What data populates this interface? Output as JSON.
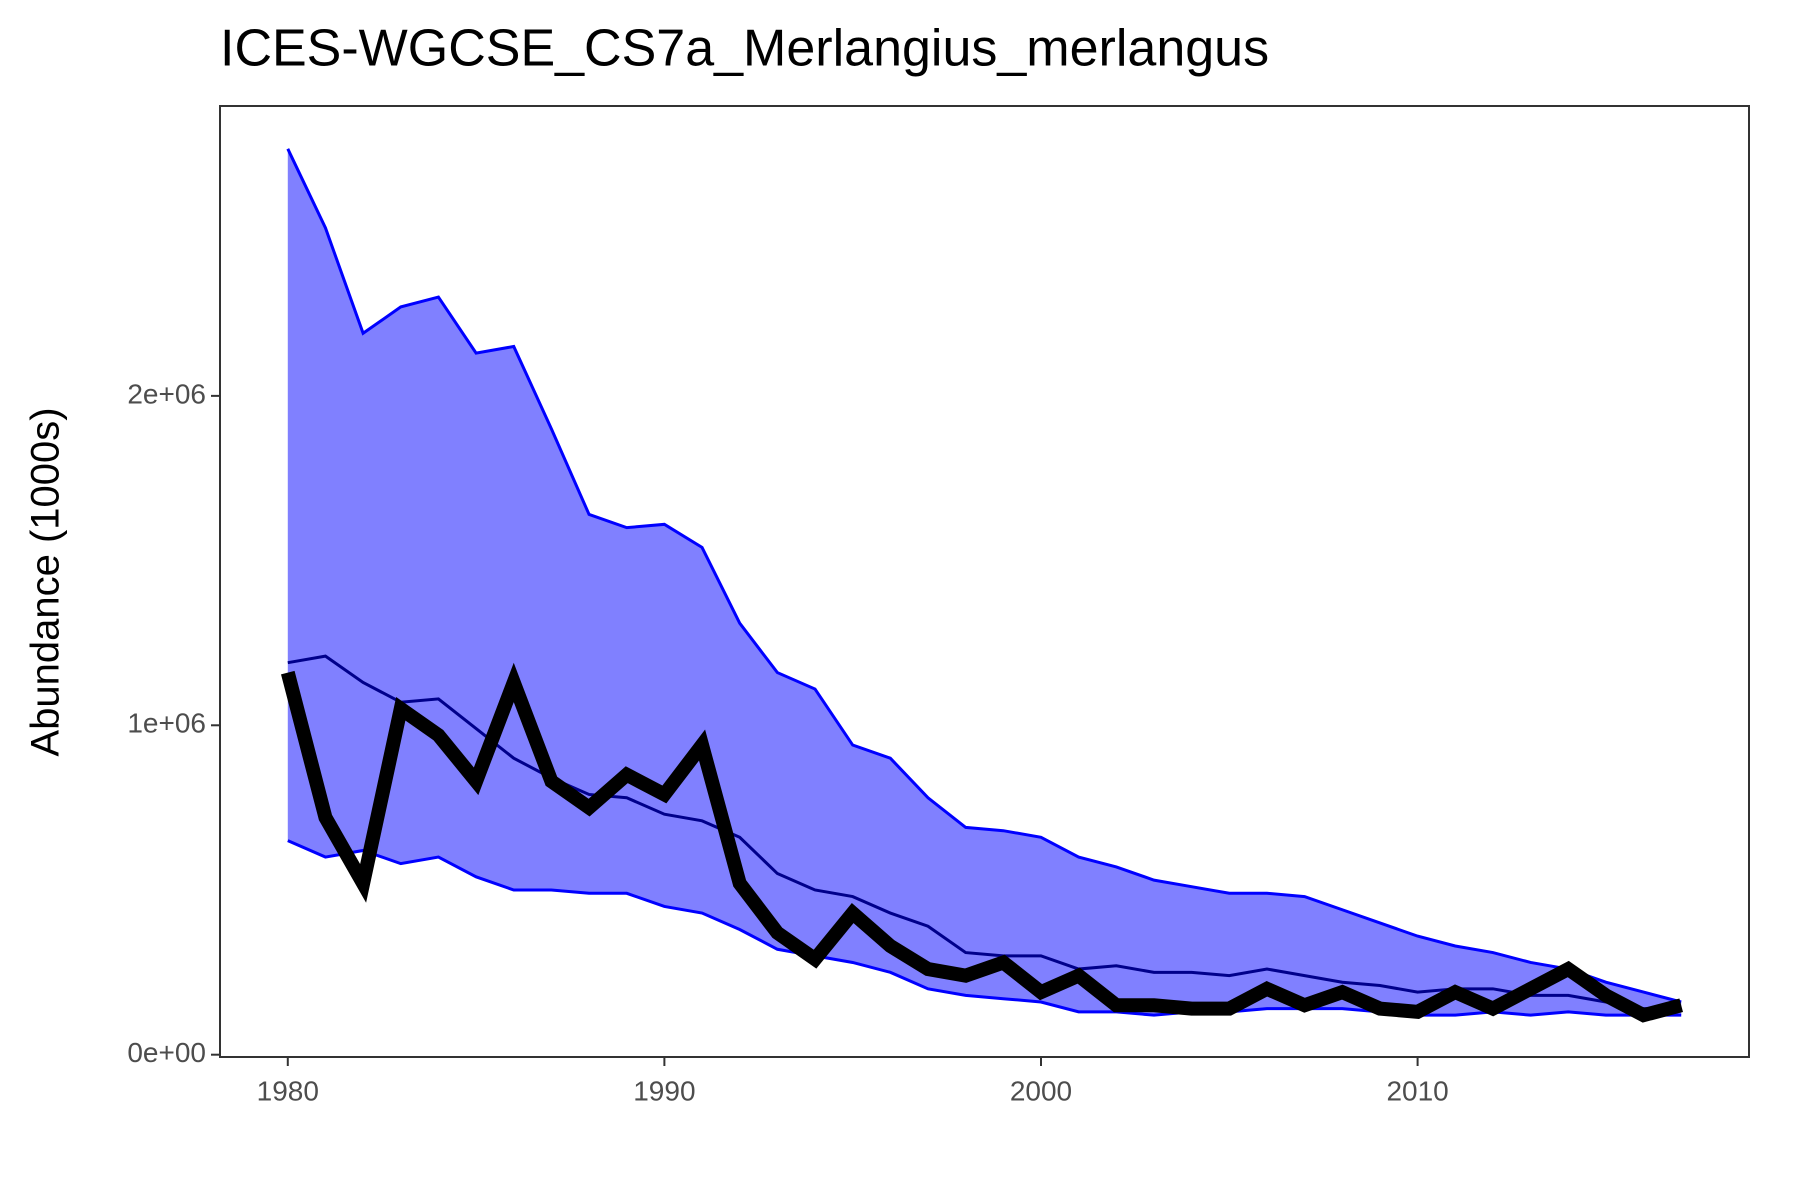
{
  "chart_data": {
    "type": "line",
    "title": "ICES-WGCSE_CS7a_Merlangius_merlangus",
    "y_label": "Abundance (1000s)",
    "x": [
      1980,
      1981,
      1982,
      1983,
      1984,
      1985,
      1986,
      1987,
      1988,
      1989,
      1990,
      1991,
      1992,
      1993,
      1994,
      1995,
      1996,
      1997,
      1998,
      1999,
      2000,
      2001,
      2002,
      2003,
      2004,
      2005,
      2006,
      2007,
      2008,
      2009,
      2010,
      2011,
      2012,
      2013,
      2014,
      2015,
      2016,
      2017
    ],
    "band": {
      "color": "#8080ff",
      "line_color": "#0000ff",
      "upper": [
        2750000,
        2510000,
        2190000,
        2270000,
        2300000,
        2130000,
        2150000,
        1900000,
        1640000,
        1600000,
        1610000,
        1540000,
        1310000,
        1160000,
        1110000,
        940000,
        900000,
        780000,
        690000,
        680000,
        660000,
        600000,
        570000,
        530000,
        510000,
        490000,
        490000,
        480000,
        440000,
        400000,
        360000,
        330000,
        310000,
        280000,
        260000,
        220000,
        190000,
        160000
      ],
      "lower": [
        650000,
        600000,
        620000,
        580000,
        600000,
        540000,
        500000,
        500000,
        490000,
        490000,
        450000,
        430000,
        380000,
        320000,
        300000,
        280000,
        250000,
        200000,
        180000,
        170000,
        160000,
        130000,
        130000,
        120000,
        130000,
        130000,
        140000,
        140000,
        140000,
        130000,
        120000,
        120000,
        130000,
        120000,
        130000,
        120000,
        120000,
        120000
      ]
    },
    "series": [
      {
        "color": "#00008b",
        "width": 3,
        "values": [
          1190000,
          1210000,
          1130000,
          1070000,
          1080000,
          990000,
          900000,
          840000,
          790000,
          780000,
          730000,
          710000,
          660000,
          550000,
          500000,
          480000,
          430000,
          390000,
          310000,
          300000,
          300000,
          260000,
          270000,
          250000,
          250000,
          240000,
          260000,
          240000,
          220000,
          210000,
          190000,
          200000,
          200000,
          180000,
          180000,
          160000,
          140000,
          140000
        ]
      },
      {
        "color": "#000000",
        "width": 14,
        "values": [
          1160000,
          720000,
          520000,
          1050000,
          970000,
          830000,
          1130000,
          830000,
          750000,
          850000,
          790000,
          940000,
          520000,
          370000,
          290000,
          430000,
          330000,
          260000,
          240000,
          280000,
          190000,
          240000,
          150000,
          150000,
          140000,
          140000,
          200000,
          150000,
          190000,
          140000,
          130000,
          190000,
          140000,
          200000,
          260000,
          180000,
          120000,
          150000
        ]
      }
    ],
    "xlim": [
      1978.2,
      2018.8
    ],
    "ylim": [
      -7000,
      2880000
    ],
    "xticks": [
      1980,
      1990,
      2000,
      2010
    ],
    "yticks": [
      {
        "value": 0,
        "label": "0e+00"
      },
      {
        "value": 1000000,
        "label": "1e+06"
      },
      {
        "value": 2000000,
        "label": "2e+06"
      }
    ]
  }
}
